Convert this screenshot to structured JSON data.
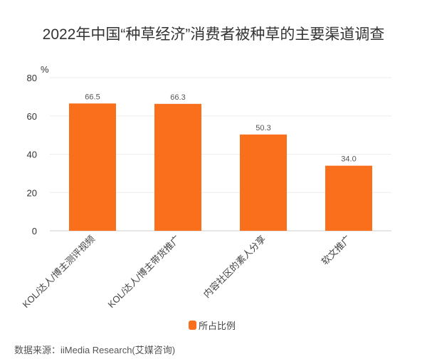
{
  "chart_data": {
    "type": "bar",
    "title": "2022年中国“种草经济”消费者被种草的主要渠道调查",
    "ylabel": "%",
    "xlabel": "",
    "categories": [
      "KOL/达人/博主测评视频",
      "KOL/达人/博主带货推广",
      "内容社区的素人分享",
      "软文推广"
    ],
    "series": [
      {
        "name": "所占比例",
        "values": [
          66.5,
          66.3,
          50.3,
          34.0
        ],
        "labels": [
          "66.5",
          "66.3",
          "50.3",
          "34.0"
        ]
      }
    ],
    "ylim": [
      0,
      80
    ],
    "yticks": [
      "0",
      "20",
      "40",
      "60",
      "80"
    ],
    "grid": true,
    "legend": "bottom-center",
    "color": "#fa6f1b"
  },
  "source": "数据来源：iiMedia Research(艾媒咨询)"
}
